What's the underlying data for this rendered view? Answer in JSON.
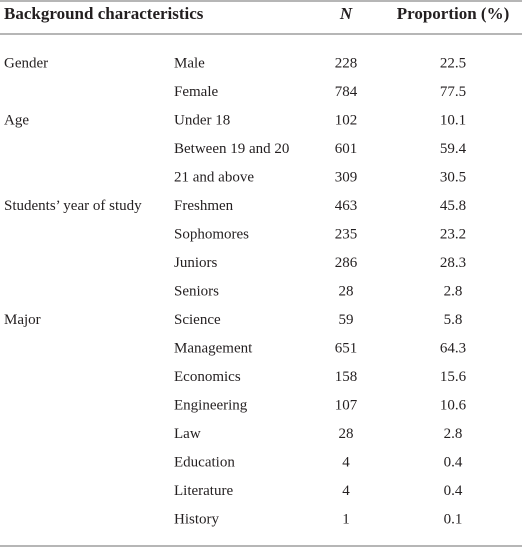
{
  "table": {
    "header": [
      "Background characteristics",
      "N",
      "Proportion (%)"
    ],
    "groups": [
      {
        "label": "Gender",
        "rows": [
          [
            "Male",
            228,
            22.5
          ],
          [
            "Female",
            784,
            77.5
          ]
        ]
      },
      {
        "label": "Age",
        "rows": [
          [
            "Under 18",
            102,
            10.1
          ],
          [
            "Between 19 and 20",
            601,
            59.4
          ],
          [
            "21 and above",
            309,
            30.5
          ]
        ]
      },
      {
        "label": "Students’ year of study",
        "rows": [
          [
            "Freshmen",
            463,
            45.8
          ],
          [
            "Sophomores",
            235,
            23.2
          ],
          [
            "Juniors",
            286,
            28.3
          ],
          [
            "Seniors",
            28,
            2.8
          ]
        ]
      },
      {
        "label": "Major",
        "rows": [
          [
            "Science",
            59,
            5.8
          ],
          [
            "Management",
            651,
            64.3
          ],
          [
            "Economics",
            158,
            15.6
          ],
          [
            "Engineering",
            107,
            10.6
          ],
          [
            "Law",
            28,
            2.8
          ],
          [
            "Education",
            4,
            0.4
          ],
          [
            "Literature",
            4,
            0.4
          ],
          [
            "History",
            1,
            0.1
          ]
        ]
      }
    ]
  }
}
